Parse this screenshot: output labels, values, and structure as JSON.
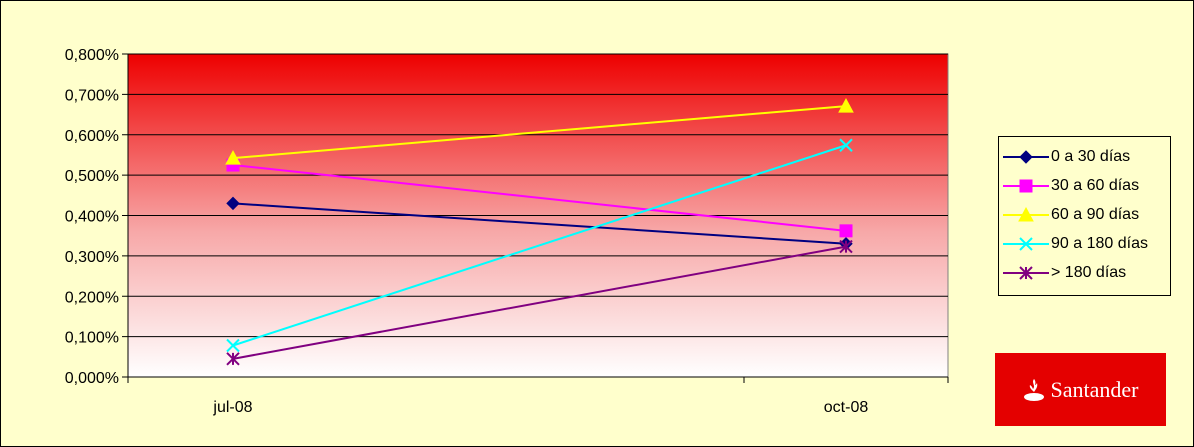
{
  "chart_data": {
    "type": "line",
    "categories": [
      "jul-08",
      "oct-08"
    ],
    "y_ticks": [
      "0,000%",
      "0,100%",
      "0,200%",
      "0,300%",
      "0,400%",
      "0,500%",
      "0,600%",
      "0,700%",
      "0,800%"
    ],
    "ylim": [
      0,
      0.8
    ],
    "grid": true,
    "legend_position": "right",
    "series": [
      {
        "name": "0 a 30 días",
        "values": [
          0.43,
          0.33
        ],
        "color": "#000080",
        "marker": "diamond"
      },
      {
        "name": "30 a 60 días",
        "values": [
          0.525,
          0.362
        ],
        "color": "#ff00ff",
        "marker": "square"
      },
      {
        "name": "60 a 90 días",
        "values": [
          0.542,
          0.671
        ],
        "color": "#ffff00",
        "marker": "triangle"
      },
      {
        "name": "90 a 180 días",
        "values": [
          0.078,
          0.574
        ],
        "color": "#00ffff",
        "marker": "x"
      },
      {
        "name": "> 180 días",
        "values": [
          0.045,
          0.323
        ],
        "color": "#800080",
        "marker": "star"
      }
    ]
  },
  "logo": {
    "text": "Santander",
    "color": "#e40000"
  }
}
